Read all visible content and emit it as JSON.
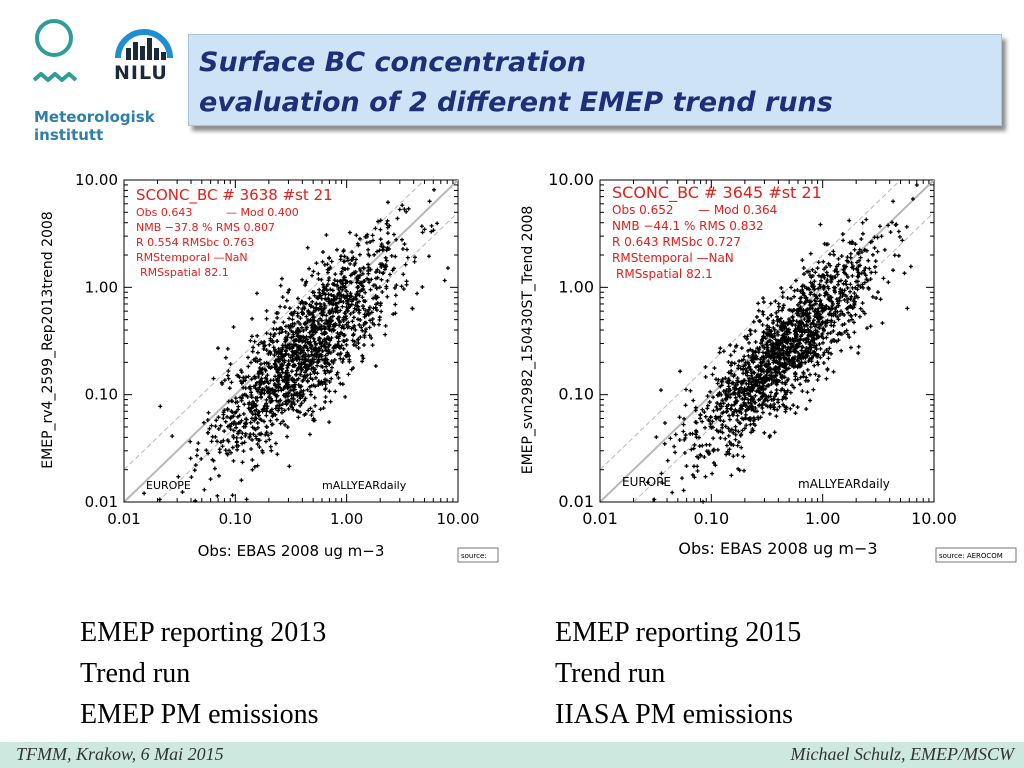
{
  "logos": {
    "met_name": "Meteorologisk",
    "met_name2": "institutt",
    "nilu_name": "NILU"
  },
  "title": {
    "line1": "Surface BC concentration",
    "line2": "evaluation of 2 different EMEP trend runs"
  },
  "chart_data": [
    {
      "type": "scatter",
      "xlabel": "Obs: EBAS 2008 ug m−3",
      "ylabel": "EMEP_rv4_2599_Rep2013trend 2008",
      "x_scale": "log",
      "y_scale": "log",
      "xlim": [
        0.01,
        10
      ],
      "ylim": [
        0.01,
        10
      ],
      "x_ticks": [
        "0.01",
        "0.10",
        "1.00",
        "10.00"
      ],
      "y_ticks": [
        "10.00",
        "1.00",
        "0.10",
        "0.01"
      ],
      "stats": {
        "header": "SCONC_BC   # 3638  #st 21",
        "obs": "Obs 0.643",
        "mod": "— Mod 0.400",
        "nmb": "NMB  −37.8 % RMS  0.807",
        "r": "R   0.554     RMSbc  0.763",
        "rms_temporal": "RMStemporal   —NaN",
        "rms_spatial": "RMSspatial  82.1"
      },
      "region_label": "EUROPE",
      "period_label": "mALLYEARdaily",
      "source_label": "source:",
      "n_points": 3638,
      "mean_obs": 0.643,
      "mean_mod": 0.4,
      "nmb_percent": -37.8,
      "rms": 0.807,
      "r": 0.554,
      "rms_bc": 0.763,
      "rms_spatial": 82.1,
      "lines": [
        "1:1",
        "1:2",
        "2:1"
      ]
    },
    {
      "type": "scatter",
      "xlabel": "Obs: EBAS 2008 ug m−3",
      "ylabel": "EMEP_svn2982_150430ST_Trend 2008",
      "x_scale": "log",
      "y_scale": "log",
      "xlim": [
        0.01,
        10
      ],
      "ylim": [
        0.01,
        10
      ],
      "x_ticks": [
        "0.01",
        "0.10",
        "1.00",
        "10.00"
      ],
      "y_ticks": [
        "10.00",
        "1.00",
        "0.10",
        "0.01"
      ],
      "stats": {
        "header": "SCONC_BC  # 3645 #st 21",
        "obs": "Obs 0.652",
        "mod": "— Mod 0.364",
        "nmb": "NMB  −44.1 % RMS  0.832",
        "r": "R  0.643   RMSbc  0.727",
        "rms_temporal": "RMStemporal  —NaN",
        "rms_spatial": "RMSspatial  82.1"
      },
      "region_label": "EUROPE",
      "period_label": "mALLYEARdaily",
      "source_label": "source: AEROCOM",
      "n_points": 3645,
      "mean_obs": 0.652,
      "mean_mod": 0.364,
      "nmb_percent": -44.1,
      "rms": 0.832,
      "r": 0.643,
      "rms_bc": 0.727,
      "rms_spatial": 82.1,
      "lines": [
        "1:1",
        "1:2",
        "2:1"
      ]
    }
  ],
  "captions": {
    "left": [
      "EMEP reporting 2013",
      "Trend run",
      "EMEP PM emissions"
    ],
    "right": [
      "EMEP reporting 2015",
      "Trend run",
      "IIASA PM emissions"
    ]
  },
  "footer": {
    "left": "TFMM, Krakow, 6 Mai 2015",
    "right": "Michael Schulz, EMEP/MSCW"
  },
  "colors": {
    "title_bg": "#cfe3f7",
    "title_text": "#1d2f78",
    "stats_text": "#e0201b",
    "footer_bg": "#cde9df",
    "met_logo": "#2f7fa8"
  }
}
